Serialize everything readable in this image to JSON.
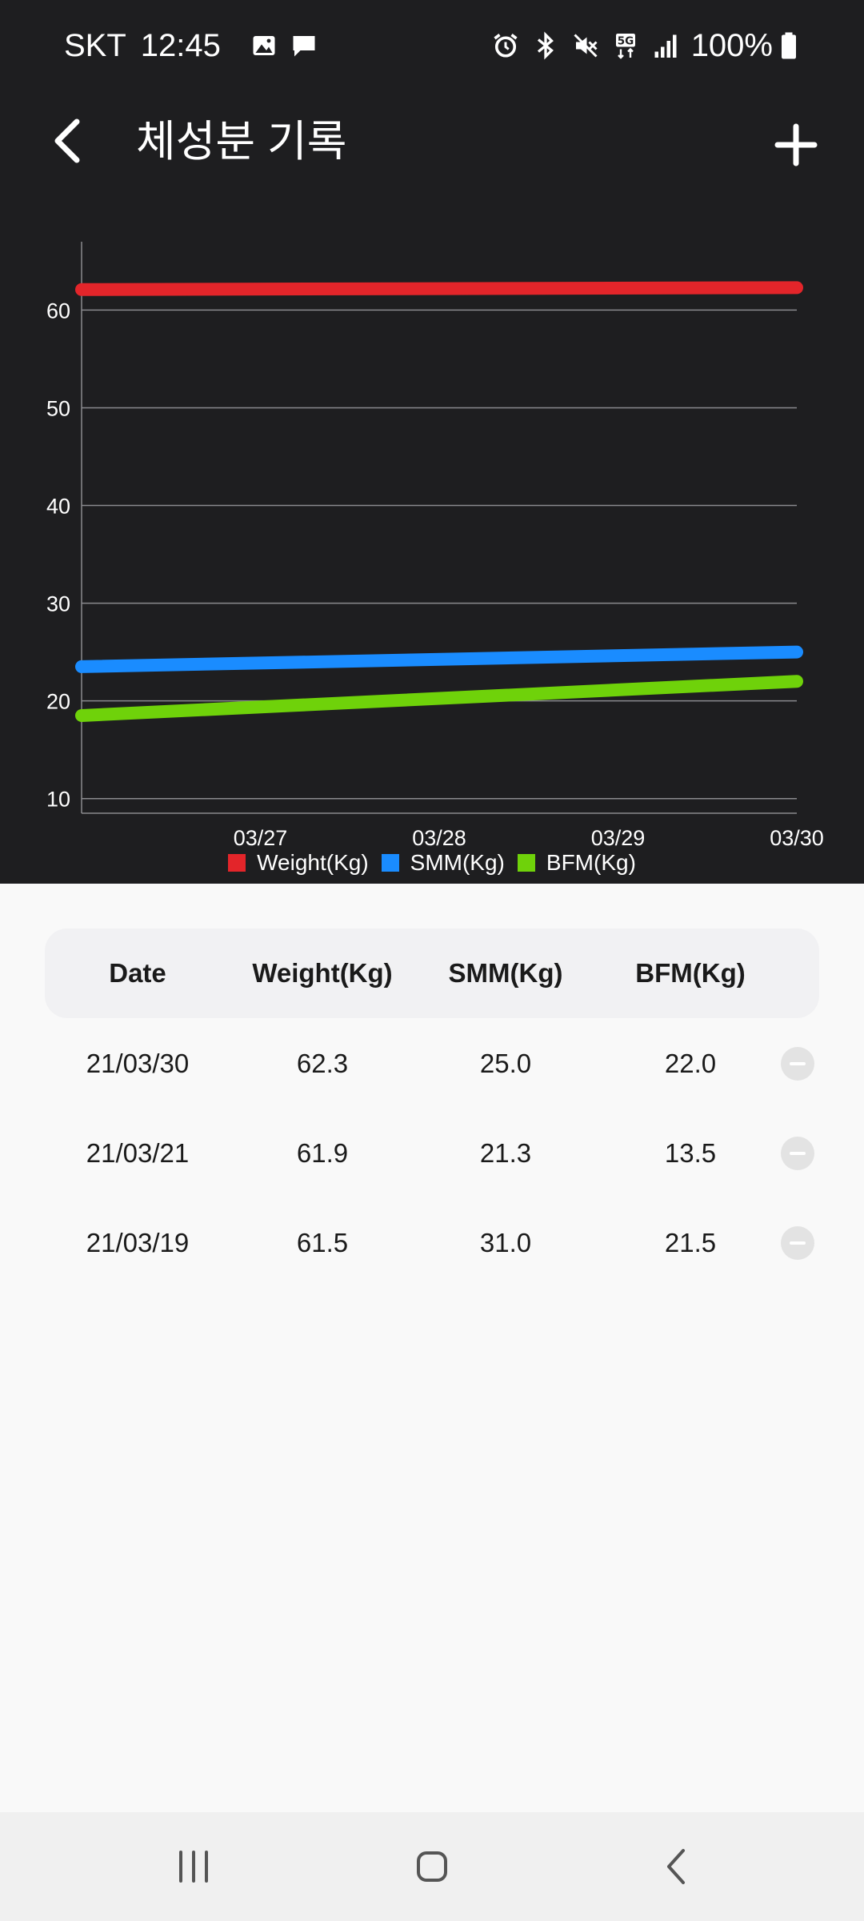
{
  "status_bar": {
    "carrier": "SKT",
    "time": "12:45",
    "battery": "100%",
    "icons": [
      "gallery-icon",
      "message-icon",
      "alarm-icon",
      "bluetooth-icon",
      "mute-icon",
      "5g-icon",
      "signal-icon",
      "battery-icon"
    ]
  },
  "app_bar": {
    "title": "체성분 기록",
    "back_icon": "back-arrow-icon",
    "add_icon": "plus-icon"
  },
  "chart_data": {
    "type": "line",
    "x": [
      "03/26",
      "03/27",
      "03/28",
      "03/29",
      "03/30"
    ],
    "x_tick_labels": [
      "03/27",
      "03/28",
      "03/29",
      "03/30"
    ],
    "ylim": [
      8.5,
      67
    ],
    "y_ticks": [
      10,
      20,
      30,
      40,
      50,
      60
    ],
    "grid": true,
    "legend_placement": "bottom-center",
    "series": [
      {
        "name": "Weight(Kg)",
        "color": "#e3252a",
        "points": [
          [
            "03/26",
            62.1
          ],
          [
            "03/30",
            62.3
          ]
        ]
      },
      {
        "name": "SMM(Kg)",
        "color": "#1a8cff",
        "points": [
          [
            "03/26",
            23.5
          ],
          [
            "03/30",
            25.0
          ]
        ]
      },
      {
        "name": "BFM(Kg)",
        "color": "#6fd20a",
        "points": [
          [
            "03/26",
            18.5
          ],
          [
            "03/30",
            22.0
          ]
        ]
      }
    ]
  },
  "table": {
    "headers": [
      "Date",
      "Weight(Kg)",
      "SMM(Kg)",
      "BFM(Kg)"
    ],
    "rows": [
      [
        "21/03/30",
        "62.3",
        "25.0",
        "22.0"
      ],
      [
        "21/03/21",
        "61.9",
        "21.3",
        "13.5"
      ],
      [
        "21/03/19",
        "61.5",
        "31.0",
        "21.5"
      ]
    ]
  },
  "nav_bar": {
    "icons": [
      "recent-apps-icon",
      "home-icon",
      "back-icon"
    ]
  }
}
